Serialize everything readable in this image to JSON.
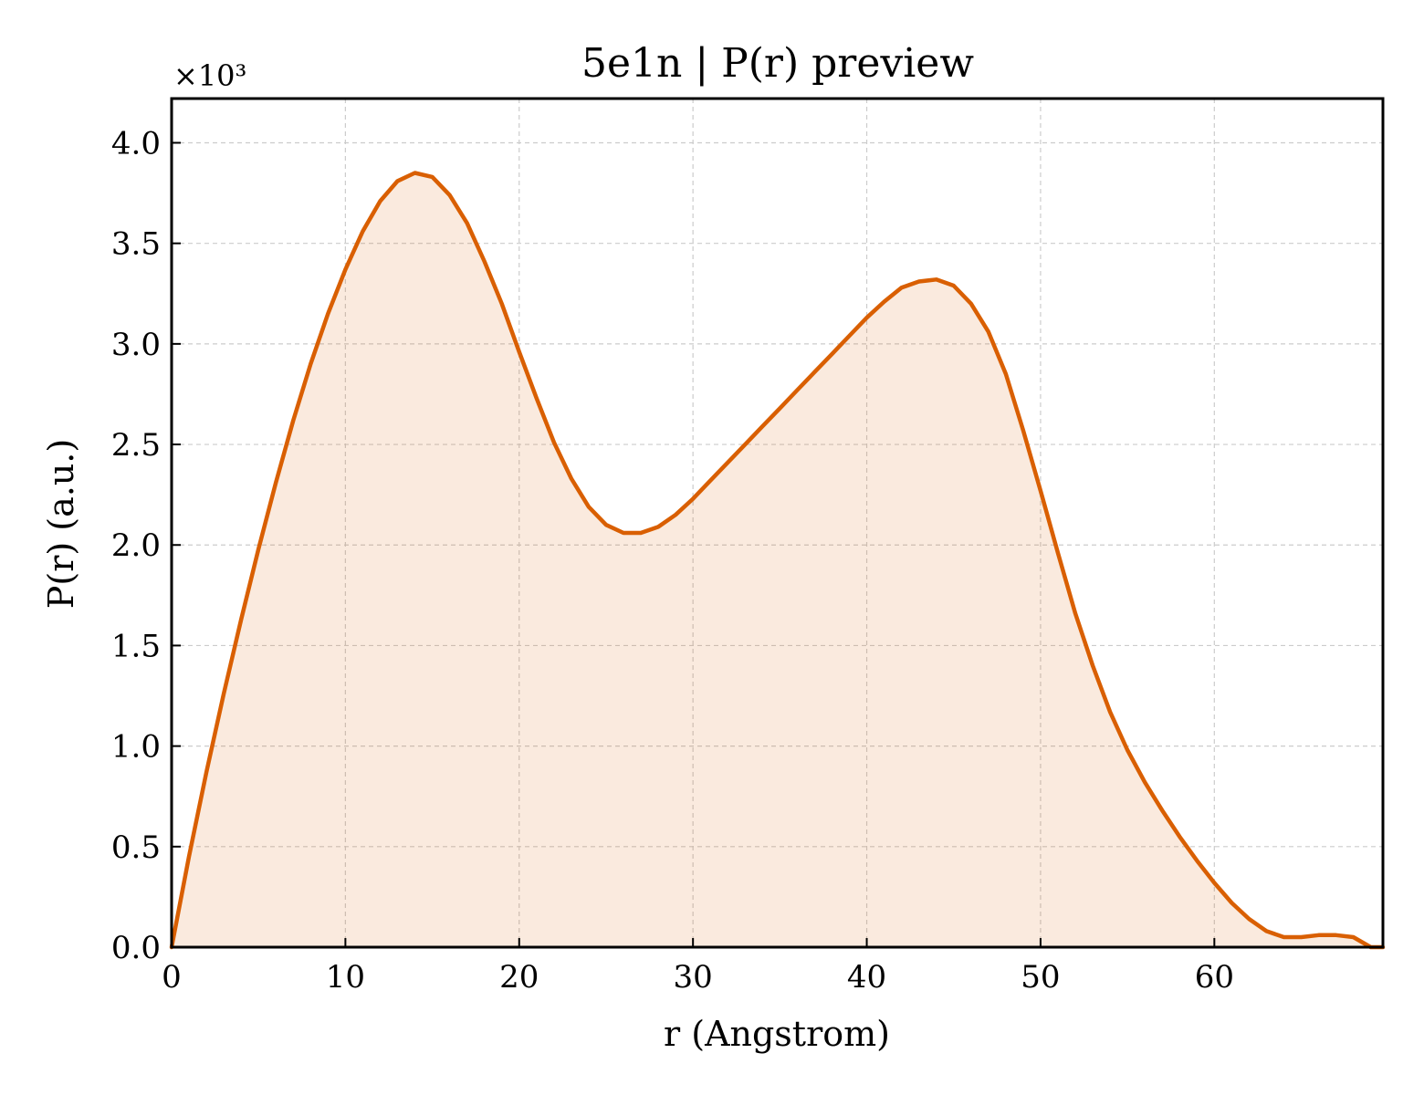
{
  "chart_data": {
    "type": "area",
    "title": "5e1n | P(r) preview",
    "xlabel": "r (Angstrom)",
    "ylabel": "P(r) (a.u.)",
    "y_multiplier_label": "×10³",
    "y_scale_factor": 1000,
    "xlim": [
      0,
      69.7
    ],
    "ylim": [
      0,
      4.22
    ],
    "x_ticks": [
      "0",
      "10",
      "20",
      "30",
      "40",
      "50",
      "60"
    ],
    "y_ticks": [
      "0.0",
      "0.5",
      "1.0",
      "1.5",
      "2.0",
      "2.5",
      "3.0",
      "3.5",
      "4.0"
    ],
    "grid": true,
    "series": [
      {
        "color": "#d95f02",
        "fill_color": "#d95f02",
        "x": [
          0,
          1,
          2,
          3,
          4,
          5,
          6,
          7,
          8,
          9,
          10,
          11,
          12,
          13,
          14,
          15,
          16,
          17,
          18,
          19,
          20,
          21,
          22,
          23,
          24,
          25,
          26,
          27,
          28,
          29,
          30,
          31,
          32,
          33,
          34,
          35,
          36,
          37,
          38,
          39,
          40,
          41,
          42,
          43,
          44,
          45,
          46,
          47,
          48,
          49,
          50,
          51,
          52,
          53,
          54,
          55,
          56,
          57,
          58,
          59,
          60,
          61,
          62,
          63,
          64,
          65,
          66,
          67,
          68,
          69,
          69.7
        ],
        "y": [
          0.0,
          0.45,
          0.87,
          1.26,
          1.63,
          1.98,
          2.31,
          2.62,
          2.9,
          3.15,
          3.37,
          3.56,
          3.71,
          3.81,
          3.85,
          3.83,
          3.74,
          3.6,
          3.41,
          3.2,
          2.96,
          2.73,
          2.51,
          2.33,
          2.19,
          2.1,
          2.06,
          2.06,
          2.09,
          2.15,
          2.23,
          2.32,
          2.41,
          2.5,
          2.59,
          2.68,
          2.77,
          2.86,
          2.95,
          3.04,
          3.13,
          3.21,
          3.28,
          3.31,
          3.32,
          3.29,
          3.2,
          3.06,
          2.85,
          2.57,
          2.27,
          1.96,
          1.66,
          1.4,
          1.17,
          0.98,
          0.82,
          0.68,
          0.55,
          0.43,
          0.32,
          0.22,
          0.14,
          0.08,
          0.05,
          0.05,
          0.06,
          0.06,
          0.05,
          0.0,
          0.0
        ]
      }
    ]
  }
}
